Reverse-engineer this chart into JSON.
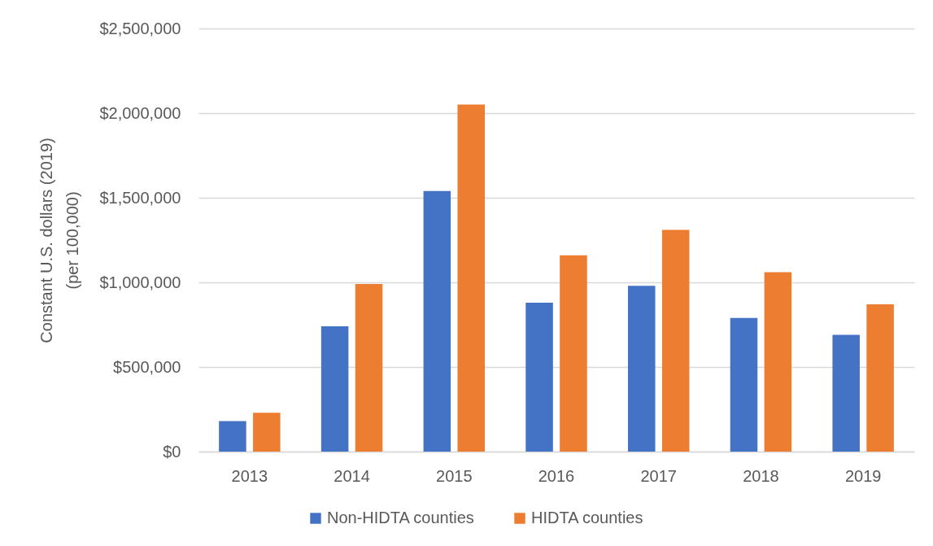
{
  "chart_data": {
    "type": "bar",
    "ylabel": "Constant U.S. dollars (2019)\n(per 100,000)",
    "categories": [
      "2013",
      "2014",
      "2015",
      "2016",
      "2017",
      "2018",
      "2019"
    ],
    "series": [
      {
        "name": "Non-HIDTA counties",
        "color": "#4472c4",
        "values": [
          180000,
          740000,
          1540000,
          880000,
          980000,
          790000,
          690000
        ]
      },
      {
        "name": "HIDTA counties",
        "color": "#ed7d31",
        "values": [
          230000,
          990000,
          2050000,
          1160000,
          1310000,
          1060000,
          870000
        ]
      }
    ],
    "ylim": [
      0,
      2500000
    ],
    "yticks": [
      {
        "value": 0,
        "label": "$0"
      },
      {
        "value": 500000,
        "label": "$500,000"
      },
      {
        "value": 1000000,
        "label": "$1,000,000"
      },
      {
        "value": 1500000,
        "label": "$1,500,000"
      },
      {
        "value": 2000000,
        "label": "$2,000,000"
      },
      {
        "value": 2500000,
        "label": "$2,500,000"
      }
    ],
    "grid": "y",
    "legend": "bottom"
  }
}
